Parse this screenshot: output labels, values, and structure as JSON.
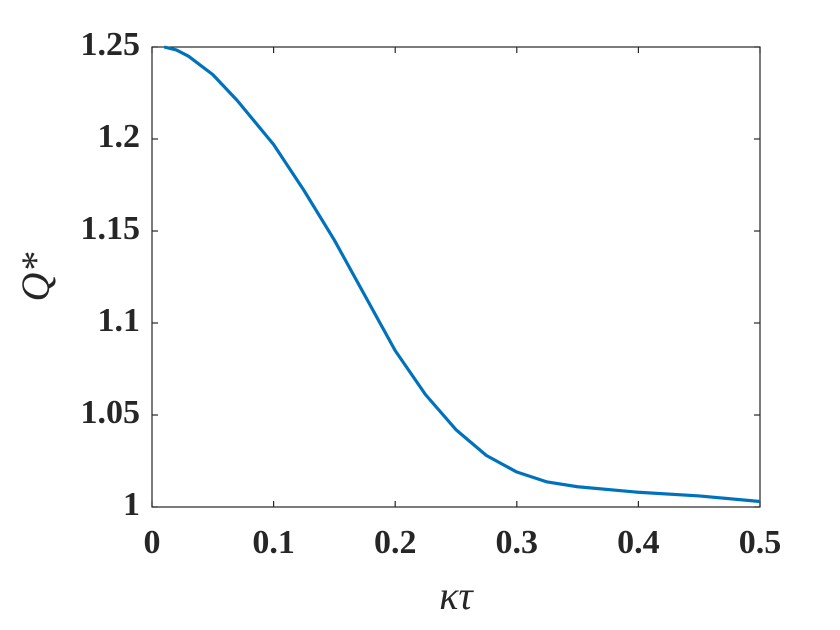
{
  "chart_data": {
    "type": "line",
    "xlabel": "κτ",
    "ylabel": "Q*",
    "x": [
      0.01,
      0.02,
      0.03,
      0.05,
      0.07,
      0.1,
      0.125,
      0.15,
      0.175,
      0.2,
      0.225,
      0.25,
      0.275,
      0.3,
      0.325,
      0.35,
      0.4,
      0.45,
      0.5
    ],
    "series": [
      {
        "name": "Q*",
        "color": "#0072bd",
        "values": [
          1.25,
          1.2484,
          1.245,
          1.235,
          1.221,
          1.197,
          1.172,
          1.145,
          1.115,
          1.085,
          1.061,
          1.042,
          1.028,
          1.019,
          1.0136,
          1.011,
          1.008,
          1.006,
          1.003
        ]
      }
    ],
    "xlim": [
      0,
      0.5
    ],
    "xticks": [
      0,
      0.1,
      0.2,
      0.3,
      0.4,
      0.5
    ],
    "ylim": [
      1,
      1.25
    ],
    "yticks": [
      1,
      1.05,
      1.1,
      1.15,
      1.2,
      1.25
    ],
    "grid": false
  }
}
